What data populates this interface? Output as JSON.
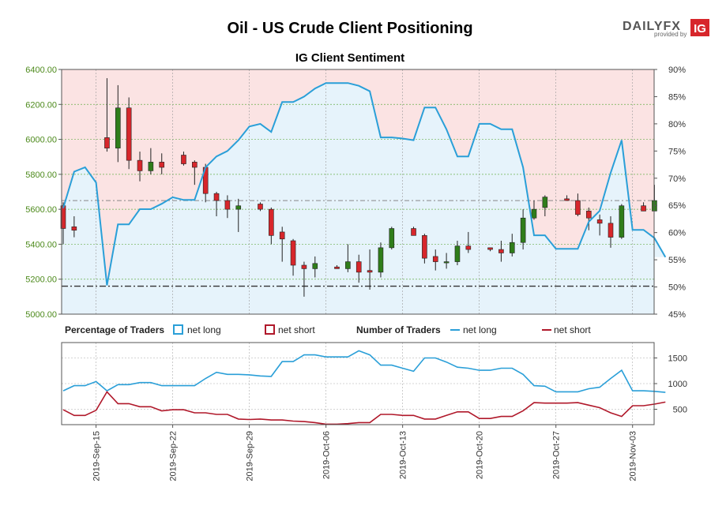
{
  "title": "Oil - US Crude Client Positioning",
  "subtitle": "IG Client Sentiment",
  "brand": {
    "name": "DAILYFX",
    "provided_by": "provided by",
    "ig": "IG"
  },
  "colors": {
    "net_long": "#2a9fd8",
    "net_short": "#b0182a",
    "long_fill": "#e6f3fb",
    "short_fill": "#fbe3e3",
    "up": "#2f7d1a",
    "down": "#d7262b",
    "tick_green": "#4d8a1c"
  },
  "legend": {
    "percentage_label": "Percentage of Traders",
    "number_label": "Number of Traders",
    "pct_long": "net long",
    "pct_short": "net short",
    "num_long": "net long",
    "num_short": "net short"
  },
  "chart_data": {
    "type": "candlestick+area+line",
    "x_labels": [
      "2019-Sep-15",
      "2019-Sep-22",
      "2019-Sep-29",
      "2019-Oct-06",
      "2019-Oct-13",
      "2019-Oct-20",
      "2019-Oct-27",
      "2019-Nov-03"
    ],
    "price_axis": {
      "ticks": [
        "6400.00",
        "6200.00",
        "6000.00",
        "5800.00",
        "5600.00",
        "5400.00",
        "5200.00",
        "5000.00"
      ],
      "min": 5000,
      "max": 6400
    },
    "pct_axis": {
      "ticks": [
        "90%",
        "85%",
        "80%",
        "75%",
        "70%",
        "65%",
        "60%",
        "55%",
        "50%",
        "45%"
      ],
      "min": 45,
      "max": 90
    },
    "count_axis": {
      "ticks": [
        "1500",
        "1000",
        "500"
      ],
      "min": 200,
      "max": 1800
    },
    "reference_lines": [
      5160,
      5650
    ],
    "candles": [
      {
        "d": 0,
        "o": 5620,
        "h": 5640,
        "l": 5400,
        "c": 5490
      },
      {
        "d": 1,
        "o": 5500,
        "h": 5560,
        "l": 5440,
        "c": 5480
      },
      {
        "d": 4,
        "o": 6010,
        "h": 6350,
        "l": 5930,
        "c": 5950
      },
      {
        "d": 5,
        "o": 5950,
        "h": 6310,
        "l": 5870,
        "c": 6180
      },
      {
        "d": 6,
        "o": 6180,
        "h": 6240,
        "l": 5830,
        "c": 5880
      },
      {
        "d": 7,
        "o": 5880,
        "h": 5930,
        "l": 5760,
        "c": 5820
      },
      {
        "d": 8,
        "o": 5820,
        "h": 5950,
        "l": 5800,
        "c": 5870
      },
      {
        "d": 9,
        "o": 5870,
        "h": 5920,
        "l": 5800,
        "c": 5840
      },
      {
        "d": 11,
        "o": 5910,
        "h": 5930,
        "l": 5850,
        "c": 5860
      },
      {
        "d": 12,
        "o": 5870,
        "h": 5880,
        "l": 5740,
        "c": 5840
      },
      {
        "d": 13,
        "o": 5840,
        "h": 5860,
        "l": 5640,
        "c": 5690
      },
      {
        "d": 14,
        "o": 5690,
        "h": 5700,
        "l": 5560,
        "c": 5650
      },
      {
        "d": 15,
        "o": 5650,
        "h": 5680,
        "l": 5550,
        "c": 5600
      },
      {
        "d": 16,
        "o": 5600,
        "h": 5660,
        "l": 5470,
        "c": 5620
      },
      {
        "d": 18,
        "o": 5630,
        "h": 5640,
        "l": 5590,
        "c": 5600
      },
      {
        "d": 19,
        "o": 5600,
        "h": 5610,
        "l": 5400,
        "c": 5450
      },
      {
        "d": 20,
        "o": 5470,
        "h": 5500,
        "l": 5300,
        "c": 5430
      },
      {
        "d": 21,
        "o": 5420,
        "h": 5430,
        "l": 5220,
        "c": 5280
      },
      {
        "d": 22,
        "o": 5280,
        "h": 5300,
        "l": 5100,
        "c": 5260
      },
      {
        "d": 23,
        "o": 5260,
        "h": 5330,
        "l": 5210,
        "c": 5290
      },
      {
        "d": 25,
        "o": 5270,
        "h": 5280,
        "l": 5260,
        "c": 5260
      },
      {
        "d": 26,
        "o": 5260,
        "h": 5400,
        "l": 5240,
        "c": 5300
      },
      {
        "d": 27,
        "o": 5300,
        "h": 5340,
        "l": 5180,
        "c": 5240
      },
      {
        "d": 28,
        "o": 5250,
        "h": 5370,
        "l": 5140,
        "c": 5240
      },
      {
        "d": 29,
        "o": 5240,
        "h": 5410,
        "l": 5210,
        "c": 5380
      },
      {
        "d": 30,
        "o": 5380,
        "h": 5500,
        "l": 5370,
        "c": 5490
      },
      {
        "d": 32,
        "o": 5490,
        "h": 5500,
        "l": 5450,
        "c": 5450
      },
      {
        "d": 33,
        "o": 5450,
        "h": 5460,
        "l": 5290,
        "c": 5320
      },
      {
        "d": 34,
        "o": 5330,
        "h": 5370,
        "l": 5250,
        "c": 5300
      },
      {
        "d": 35,
        "o": 5300,
        "h": 5350,
        "l": 5260,
        "c": 5300
      },
      {
        "d": 36,
        "o": 5300,
        "h": 5420,
        "l": 5280,
        "c": 5390
      },
      {
        "d": 37,
        "o": 5390,
        "h": 5470,
        "l": 5350,
        "c": 5370
      },
      {
        "d": 39,
        "o": 5380,
        "h": 5380,
        "l": 5360,
        "c": 5370
      },
      {
        "d": 40,
        "o": 5370,
        "h": 5420,
        "l": 5300,
        "c": 5350
      },
      {
        "d": 41,
        "o": 5350,
        "h": 5460,
        "l": 5330,
        "c": 5410
      },
      {
        "d": 42,
        "o": 5410,
        "h": 5600,
        "l": 5370,
        "c": 5550
      },
      {
        "d": 43,
        "o": 5550,
        "h": 5650,
        "l": 5540,
        "c": 5600
      },
      {
        "d": 44,
        "o": 5610,
        "h": 5680,
        "l": 5560,
        "c": 5670
      },
      {
        "d": 46,
        "o": 5660,
        "h": 5680,
        "l": 5650,
        "c": 5650
      },
      {
        "d": 47,
        "o": 5650,
        "h": 5690,
        "l": 5560,
        "c": 5570
      },
      {
        "d": 48,
        "o": 5590,
        "h": 5610,
        "l": 5480,
        "c": 5550
      },
      {
        "d": 49,
        "o": 5540,
        "h": 5570,
        "l": 5450,
        "c": 5520
      },
      {
        "d": 50,
        "o": 5520,
        "h": 5560,
        "l": 5380,
        "c": 5440
      },
      {
        "d": 51,
        "o": 5440,
        "h": 5630,
        "l": 5430,
        "c": 5620
      },
      {
        "d": 53,
        "o": 5620,
        "h": 5640,
        "l": 5590,
        "c": 5590
      },
      {
        "d": 54,
        "o": 5590,
        "h": 5740,
        "l": 5590,
        "c": 5650
      }
    ],
    "pct_long": [
      [
        0,
        64.5
      ],
      [
        1,
        71.2
      ],
      [
        2,
        72.0
      ],
      [
        3,
        69.2
      ],
      [
        4,
        50.3
      ],
      [
        5,
        61.5
      ],
      [
        6,
        61.5
      ],
      [
        7,
        64.3
      ],
      [
        8,
        64.3
      ],
      [
        9,
        65.3
      ],
      [
        10,
        66.5
      ],
      [
        11,
        66.0
      ],
      [
        12,
        66.0
      ],
      [
        13,
        72.0
      ],
      [
        14,
        74.0
      ],
      [
        15,
        75.0
      ],
      [
        16,
        77.0
      ],
      [
        17,
        79.5
      ],
      [
        18,
        80.0
      ],
      [
        19,
        78.5
      ],
      [
        20,
        84.0
      ],
      [
        21,
        84.0
      ],
      [
        22,
        85.0
      ],
      [
        23,
        86.5
      ],
      [
        24,
        87.5
      ],
      [
        25,
        87.5
      ],
      [
        26,
        87.5
      ],
      [
        27,
        87.0
      ],
      [
        28,
        86.0
      ],
      [
        29,
        77.5
      ],
      [
        30,
        77.5
      ],
      [
        31,
        77.3
      ],
      [
        32,
        77.0
      ],
      [
        33,
        83.0
      ],
      [
        34,
        83.0
      ],
      [
        35,
        79.0
      ],
      [
        36,
        74.0
      ],
      [
        37,
        74.0
      ],
      [
        38,
        80.0
      ],
      [
        39,
        80.0
      ],
      [
        40,
        79.0
      ],
      [
        41,
        79.0
      ],
      [
        42,
        72.0
      ],
      [
        43,
        59.5
      ],
      [
        44,
        59.5
      ],
      [
        45,
        57.0
      ],
      [
        46,
        57.0
      ],
      [
        47,
        57.0
      ],
      [
        48,
        62.0
      ],
      [
        49,
        64.0
      ],
      [
        50,
        71.0
      ],
      [
        51,
        77.0
      ],
      [
        52,
        60.5
      ],
      [
        53,
        60.5
      ],
      [
        54,
        59.0
      ],
      [
        55,
        55.5
      ]
    ],
    "num_long": [
      [
        0,
        860
      ],
      [
        1,
        960
      ],
      [
        2,
        960
      ],
      [
        3,
        1040
      ],
      [
        4,
        860
      ],
      [
        5,
        980
      ],
      [
        6,
        980
      ],
      [
        7,
        1020
      ],
      [
        8,
        1020
      ],
      [
        9,
        960
      ],
      [
        10,
        960
      ],
      [
        11,
        960
      ],
      [
        12,
        960
      ],
      [
        13,
        1100
      ],
      [
        14,
        1220
      ],
      [
        15,
        1180
      ],
      [
        16,
        1180
      ],
      [
        17,
        1170
      ],
      [
        18,
        1150
      ],
      [
        19,
        1140
      ],
      [
        20,
        1430
      ],
      [
        21,
        1430
      ],
      [
        22,
        1560
      ],
      [
        23,
        1560
      ],
      [
        24,
        1520
      ],
      [
        25,
        1520
      ],
      [
        26,
        1520
      ],
      [
        27,
        1640
      ],
      [
        28,
        1560
      ],
      [
        29,
        1360
      ],
      [
        30,
        1360
      ],
      [
        31,
        1300
      ],
      [
        32,
        1240
      ],
      [
        33,
        1500
      ],
      [
        34,
        1500
      ],
      [
        35,
        1420
      ],
      [
        36,
        1320
      ],
      [
        37,
        1300
      ],
      [
        38,
        1260
      ],
      [
        39,
        1260
      ],
      [
        40,
        1300
      ],
      [
        41,
        1300
      ],
      [
        42,
        1180
      ],
      [
        43,
        960
      ],
      [
        44,
        950
      ],
      [
        45,
        840
      ],
      [
        46,
        840
      ],
      [
        47,
        840
      ],
      [
        48,
        900
      ],
      [
        49,
        930
      ],
      [
        50,
        1100
      ],
      [
        51,
        1260
      ],
      [
        52,
        860
      ],
      [
        53,
        860
      ],
      [
        54,
        850
      ],
      [
        55,
        830
      ]
    ],
    "num_short": [
      [
        0,
        490
      ],
      [
        1,
        380
      ],
      [
        2,
        380
      ],
      [
        3,
        480
      ],
      [
        4,
        840
      ],
      [
        5,
        610
      ],
      [
        6,
        610
      ],
      [
        7,
        550
      ],
      [
        8,
        550
      ],
      [
        9,
        470
      ],
      [
        10,
        490
      ],
      [
        11,
        490
      ],
      [
        12,
        430
      ],
      [
        13,
        430
      ],
      [
        14,
        400
      ],
      [
        15,
        400
      ],
      [
        16,
        310
      ],
      [
        17,
        300
      ],
      [
        18,
        310
      ],
      [
        19,
        290
      ],
      [
        20,
        290
      ],
      [
        21,
        270
      ],
      [
        22,
        260
      ],
      [
        23,
        240
      ],
      [
        24,
        210
      ],
      [
        25,
        210
      ],
      [
        26,
        220
      ],
      [
        27,
        240
      ],
      [
        28,
        240
      ],
      [
        29,
        400
      ],
      [
        30,
        400
      ],
      [
        31,
        380
      ],
      [
        32,
        380
      ],
      [
        33,
        310
      ],
      [
        34,
        310
      ],
      [
        35,
        380
      ],
      [
        36,
        450
      ],
      [
        37,
        450
      ],
      [
        38,
        320
      ],
      [
        39,
        320
      ],
      [
        40,
        360
      ],
      [
        41,
        360
      ],
      [
        42,
        470
      ],
      [
        43,
        630
      ],
      [
        44,
        620
      ],
      [
        45,
        620
      ],
      [
        46,
        620
      ],
      [
        47,
        630
      ],
      [
        48,
        580
      ],
      [
        49,
        530
      ],
      [
        50,
        430
      ],
      [
        51,
        360
      ],
      [
        52,
        570
      ],
      [
        53,
        570
      ],
      [
        54,
        600
      ],
      [
        55,
        640
      ]
    ]
  }
}
